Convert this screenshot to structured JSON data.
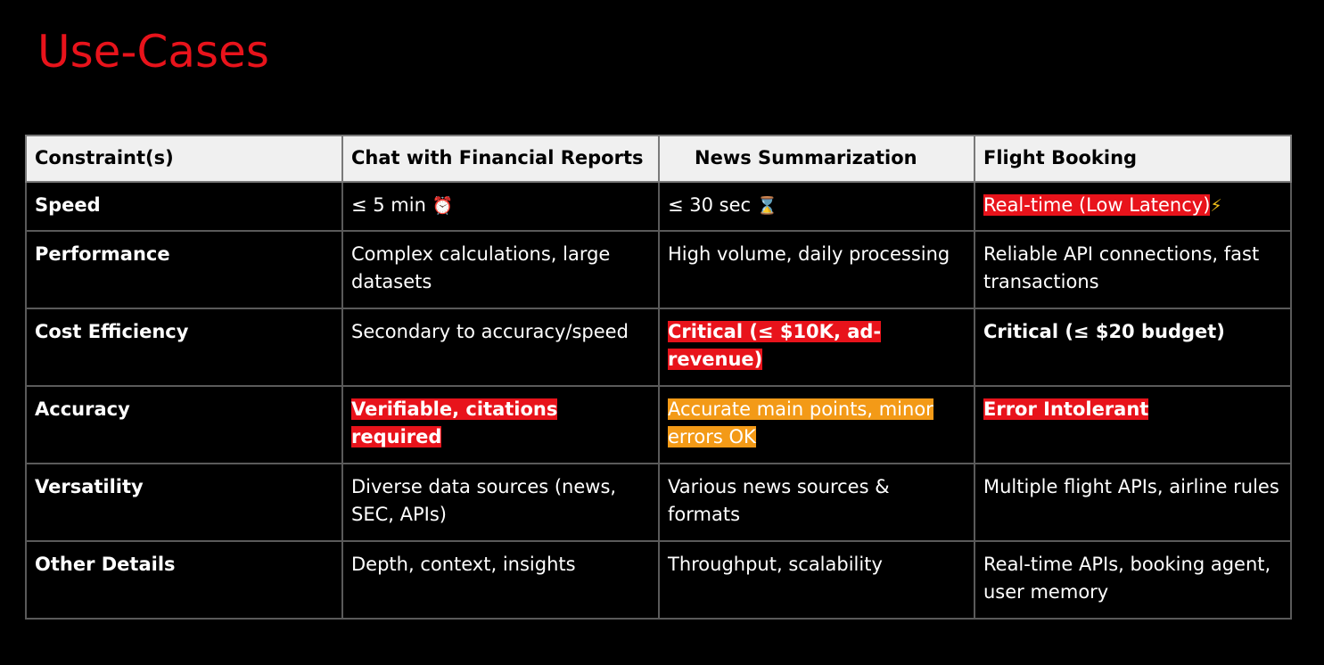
{
  "title": "Use-Cases",
  "table": {
    "headers": [
      "Constraint(s)",
      "Chat with Financial Reports",
      "News Summarization",
      "Flight Booking"
    ],
    "rows": [
      {
        "label": "Speed",
        "cells": [
          {
            "text": "≤ 5 min",
            "icon": "⏰"
          },
          {
            "text": "≤ 30 sec",
            "icon": "⌛"
          },
          {
            "text": "Real-time (Low Latency)",
            "icon": "⚡"
          }
        ]
      },
      {
        "label": "Performance",
        "cells": [
          {
            "text": "Complex calculations, large datasets"
          },
          {
            "text": "High volume, daily processing"
          },
          {
            "text": "Reliable API connections, fast transactions"
          }
        ]
      },
      {
        "label": "Cost Efficiency",
        "cells": [
          {
            "text": "Secondary to accuracy/speed"
          },
          {
            "text": "Critical (≤ $10K, ad-revenue)"
          },
          {
            "text": "Critical (≤ $20 budget)"
          }
        ]
      },
      {
        "label": "Accuracy",
        "cells": [
          {
            "text": "Verifiable, citations required"
          },
          {
            "text": "Accurate main points, minor errors OK"
          },
          {
            "text": "Error Intolerant"
          }
        ]
      },
      {
        "label": "Versatility",
        "cells": [
          {
            "text": "Diverse data sources (news, SEC, APIs)"
          },
          {
            "text": "Various news sources & formats"
          },
          {
            "text": "Multiple flight APIs, airline rules"
          }
        ]
      },
      {
        "label": "Other Details",
        "cells": [
          {
            "text": "Depth, context, insights"
          },
          {
            "text": "Throughput, scalability"
          },
          {
            "text": "Real-time APIs, booking agent, user memory"
          }
        ]
      }
    ]
  },
  "colors": {
    "background": "#000000",
    "title": "#e8131b",
    "highlight_red": "#e8131b",
    "highlight_orange": "#f39a17",
    "header_bg": "#f0f0f0",
    "grid": "#5a5a5a"
  },
  "icons": [
    "alarm-clock-icon",
    "hourglass-icon",
    "lightning-icon"
  ]
}
